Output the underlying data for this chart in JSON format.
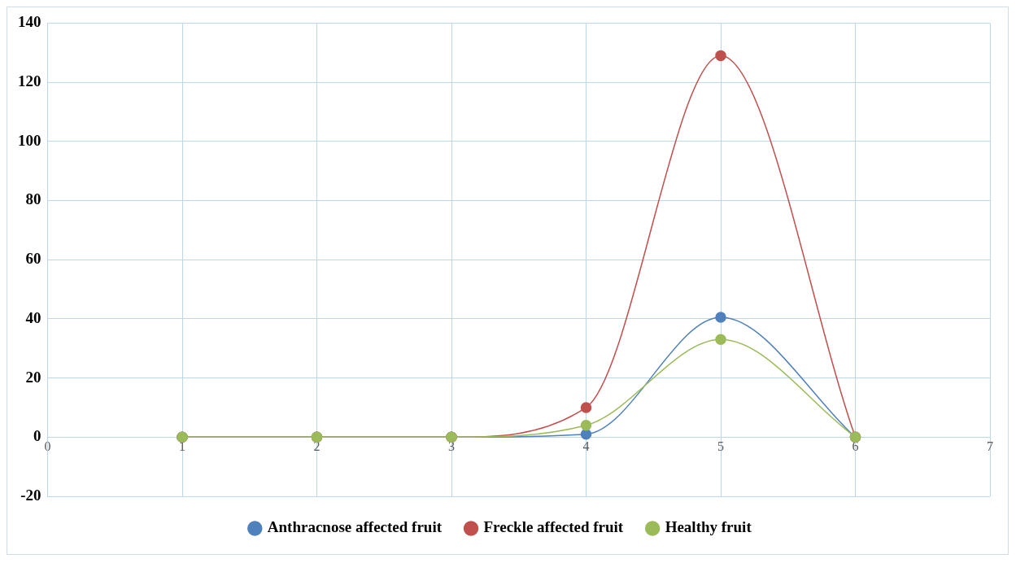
{
  "chart_data": {
    "type": "line",
    "x": [
      1,
      2,
      3,
      4,
      5,
      6
    ],
    "series": [
      {
        "name": "Anthracnose affected fruit",
        "color": "#4f81bd",
        "values": [
          0,
          0,
          0,
          1,
          40.5,
          0
        ]
      },
      {
        "name": "Freckle affected fruit",
        "color": "#c0504d",
        "values": [
          0,
          0,
          0,
          10,
          129,
          0
        ]
      },
      {
        "name": "Healthy fruit",
        "color": "#9bbb59",
        "values": [
          0,
          0,
          0,
          4,
          33,
          0
        ]
      }
    ],
    "xlim": [
      0,
      7
    ],
    "xticks": [
      0,
      1,
      2,
      3,
      4,
      5,
      6,
      7
    ],
    "ylim": [
      -20,
      140
    ],
    "yticks": [
      -20,
      0,
      20,
      40,
      60,
      80,
      100,
      120,
      140
    ],
    "grid": true,
    "legend": "bottom",
    "marker": "circle",
    "line_style": "solid"
  }
}
